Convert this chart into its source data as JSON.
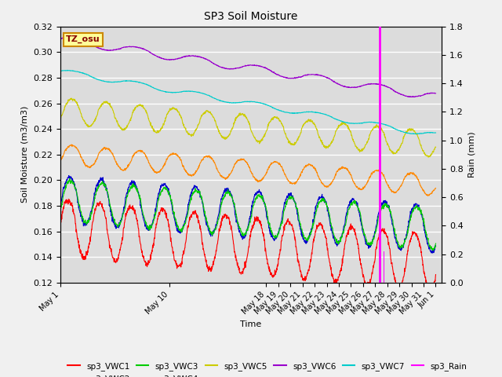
{
  "title": "SP3 Soil Moisture",
  "xlabel": "Time",
  "ylabel_left": "Soil Moisture (m3/m3)",
  "ylabel_right": "Rain (mm)",
  "ylim_left": [
    0.12,
    0.32
  ],
  "ylim_right": [
    0.0,
    1.8
  ],
  "plot_bg_color": "#dcdcdc",
  "fig_bg_color": "#f0f0f0",
  "annotation": {
    "text": "TZ_osu",
    "facecolor": "#ffff99",
    "edgecolor": "#cc8800",
    "textcolor": "#880000"
  },
  "series": {
    "sp3_VWC1": {
      "color": "#ff0000",
      "start": 0.163,
      "end": 0.135,
      "amplitude": 0.022,
      "osc_period": 2.6,
      "phase": 0.0
    },
    "sp3_VWC2": {
      "color": "#0000cc",
      "start": 0.185,
      "end": 0.162,
      "amplitude": 0.018,
      "osc_period": 2.6,
      "phase": 0.1
    },
    "sp3_VWC3": {
      "color": "#00cc00",
      "start": 0.184,
      "end": 0.162,
      "amplitude": 0.016,
      "osc_period": 2.6,
      "phase": 0.15
    },
    "sp3_VWC4": {
      "color": "#ff8800",
      "start": 0.22,
      "end": 0.196,
      "amplitude": 0.008,
      "osc_period": 2.8,
      "phase": 0.2
    },
    "sp3_VWC5": {
      "color": "#cccc00",
      "start": 0.254,
      "end": 0.228,
      "amplitude": 0.01,
      "osc_period": 2.8,
      "phase": 0.2
    },
    "sp3_VWC6": {
      "color": "#9900cc",
      "start": 0.31,
      "end": 0.265,
      "amplitude": 0.003,
      "osc_period": 5.0,
      "phase": 0.0
    },
    "sp3_VWC7": {
      "color": "#00cccc",
      "start": 0.285,
      "end": 0.235,
      "amplitude": 0.002,
      "osc_period": 5.0,
      "phase": 0.0
    }
  },
  "rain_x": 26.4,
  "rain_x2": 26.7,
  "rain_color": "#ff00ff",
  "n_days": 31,
  "xtick_days": [
    0,
    9,
    17,
    18,
    19,
    20,
    21,
    22,
    23,
    24,
    25,
    26,
    27,
    28,
    29,
    30
  ],
  "xtick_labels": [
    "May 1",
    "May 10",
    "May 18",
    "May 19",
    "May 20",
    "May 21",
    "May 22",
    "May 23",
    "May 24",
    "May 25",
    "May 26",
    "May 27",
    "May 28",
    "May 29",
    "May 30",
    "May 31"
  ],
  "extra_tick_day": 31,
  "extra_tick_label": "Jun 1"
}
